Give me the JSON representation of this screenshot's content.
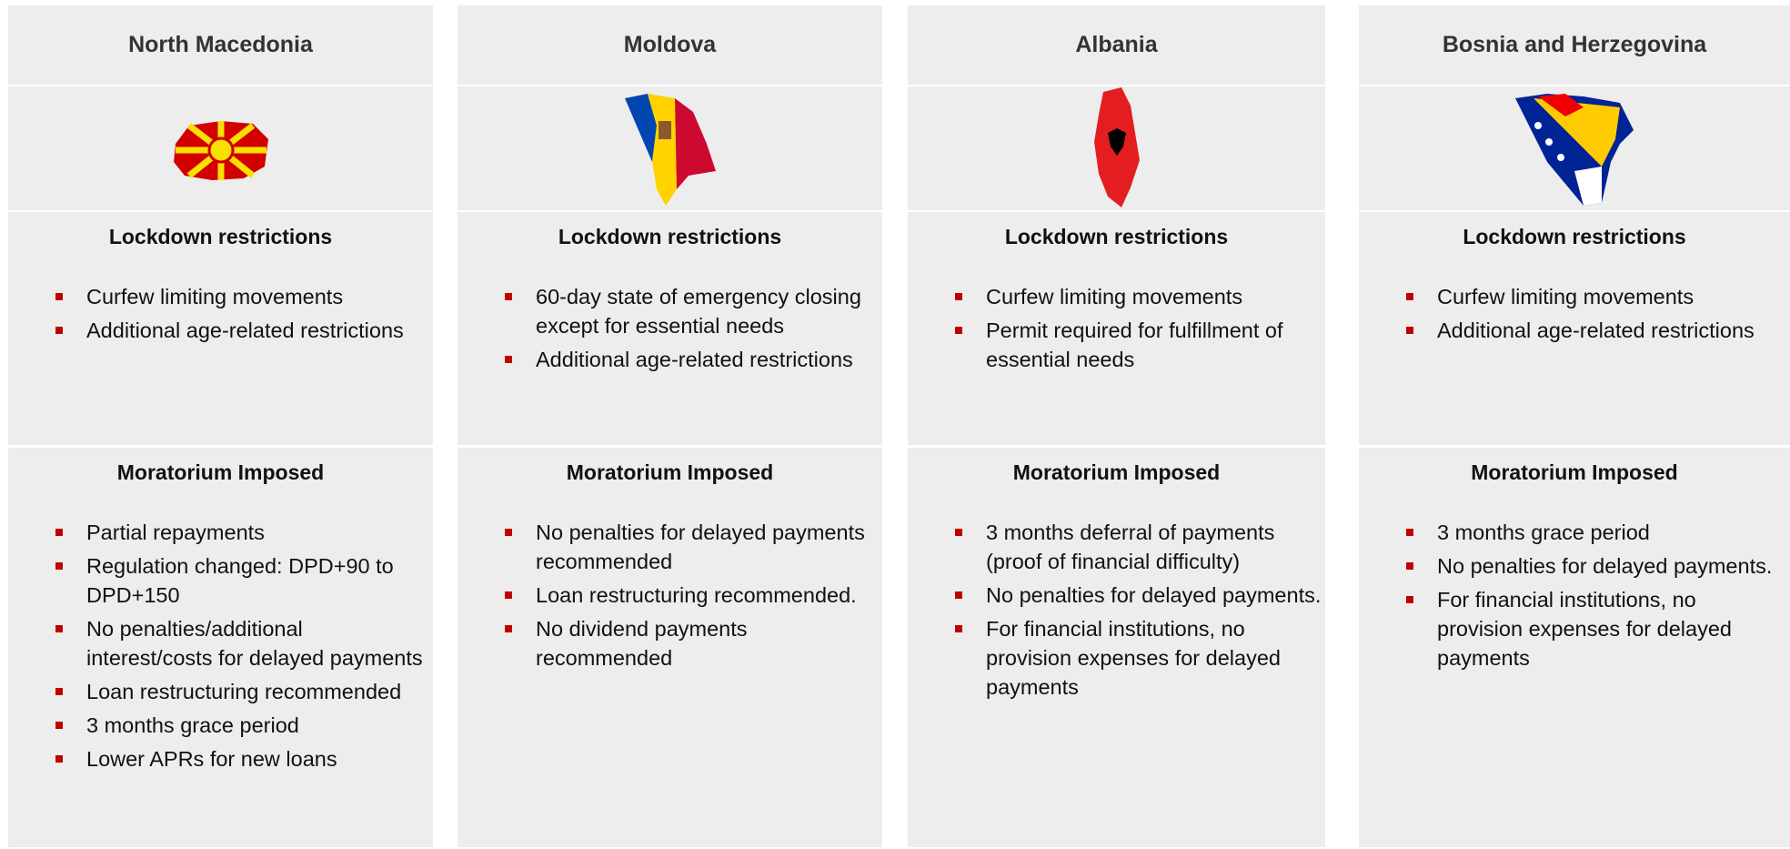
{
  "columns": [
    {
      "country": "North Macedonia",
      "lockdown_title": "Lockdown restrictions",
      "lockdown_items": [
        "Curfew limiting movements",
        "Additional age-related restrictions"
      ],
      "moratorium_title": "Moratorium Imposed",
      "moratorium_items": [
        "Partial repayments",
        "Regulation changed: DPD+90 to DPD+150",
        "No penalties/additional interest/costs for delayed payments",
        "Loan restructuring recommended",
        "3 months grace period",
        "Lower APRs for new loans"
      ]
    },
    {
      "country": "Moldova",
      "lockdown_title": "Lockdown restrictions",
      "lockdown_items": [
        "60-day state of emergency closing except for essential needs",
        "Additional age-related restrictions"
      ],
      "moratorium_title": "Moratorium Imposed",
      "moratorium_items": [
        "No penalties for delayed payments recommended",
        "Loan restructuring recommended.",
        "No dividend payments recommended"
      ]
    },
    {
      "country": "Albania",
      "lockdown_title": "Lockdown restrictions",
      "lockdown_items": [
        "Curfew limiting movements",
        "Permit required for fulfillment of essential needs"
      ],
      "moratorium_title": "Moratorium Imposed",
      "moratorium_items": [
        "3 months deferral of payments   (proof of financial difficulty)",
        "No penalties for delayed payments.",
        "For financial institutions, no provision expenses for delayed payments"
      ]
    },
    {
      "country": "Bosnia and Herzegovina",
      "lockdown_title": "Lockdown restrictions",
      "lockdown_items": [
        "Curfew limiting movements",
        "Additional age-related restrictions"
      ],
      "moratorium_title": "Moratorium Imposed",
      "moratorium_items": [
        "3 months grace period",
        "No penalties for delayed payments.",
        "For financial institutions, no provision expenses for delayed payments"
      ]
    }
  ]
}
